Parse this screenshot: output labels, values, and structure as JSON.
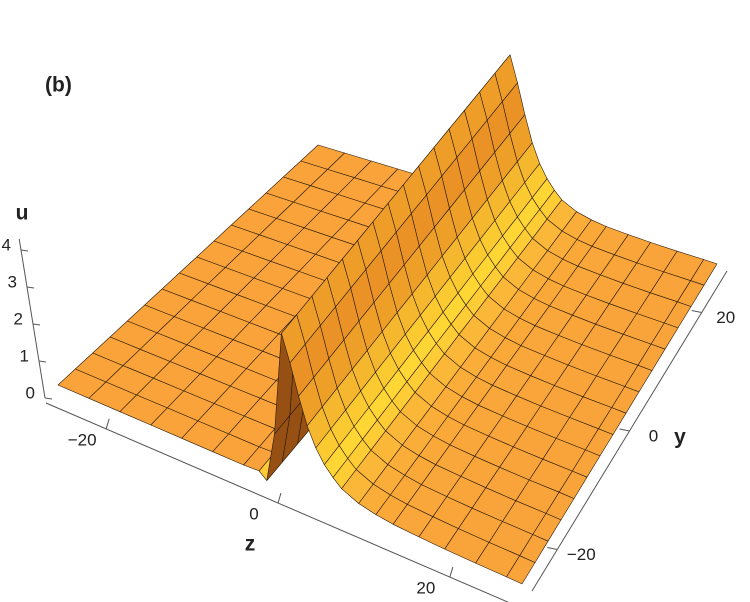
{
  "panel_label": "(b)",
  "chart_data": {
    "type": "surface",
    "x_label": "z",
    "y_label": "y",
    "z_label": "u",
    "x": [
      -27,
      -23.4,
      -19.8,
      -16.2,
      -12.6,
      -9,
      -5.4,
      -3.6,
      -2.7,
      -1.8,
      -1,
      0,
      1,
      2,
      3,
      4,
      5,
      6,
      8,
      10,
      12,
      15,
      18,
      21.6,
      25.2,
      27
    ],
    "values": [
      0,
      0,
      0,
      0,
      0,
      0,
      0,
      0.02,
      -0.15,
      1.2,
      4,
      3.3,
      2.5,
      1.8,
      1.3,
      0.95,
      0.7,
      0.5,
      0.3,
      0.2,
      0.14,
      0.1,
      0.07,
      0.05,
      0.04,
      0.03
    ],
    "xlim": [
      -27,
      27
    ],
    "ylim": [
      -27,
      27
    ],
    "zlim": [
      0,
      4
    ],
    "xticks": [
      {
        "value": -20,
        "label": "−20"
      },
      0,
      20
    ],
    "yticks": [
      {
        "value": -20,
        "label": "−20"
      },
      0,
      20
    ],
    "zticks": [
      0,
      1,
      2,
      3,
      4
    ],
    "color": "#f9a33a"
  }
}
